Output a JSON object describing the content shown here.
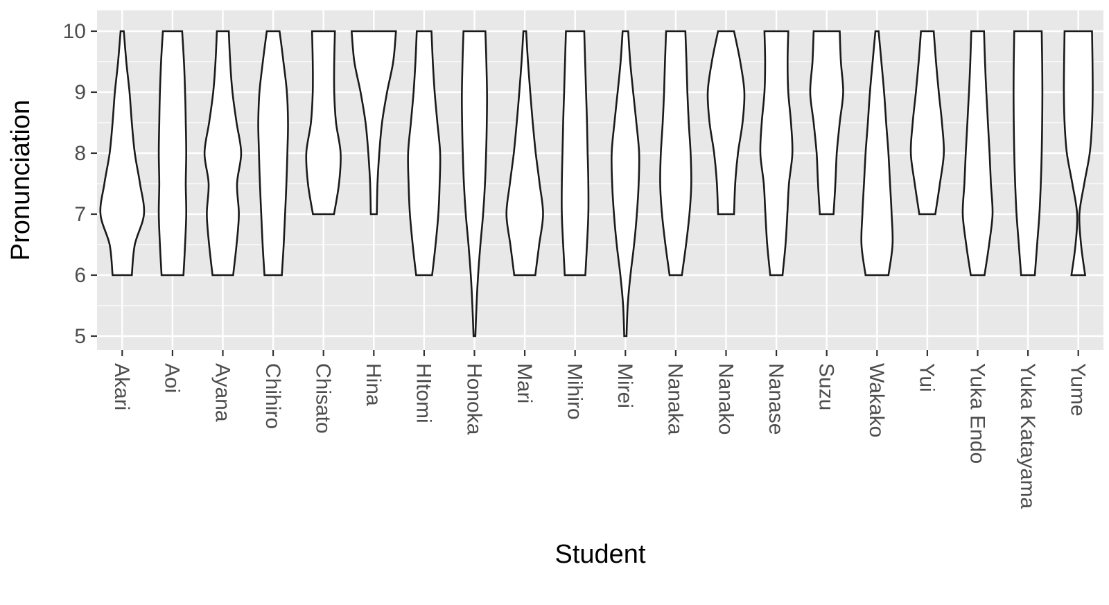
{
  "figure": {
    "background": "#FFFFFF",
    "panel_background": "#E8E8E8",
    "grid_color": "#FFFFFF",
    "violin_fill": "#FFFFFF",
    "violin_stroke": "#1A1A1A",
    "tick_color": "#333333",
    "tick_label_color": "#4D4D4D",
    "title_color": "#000000"
  },
  "chart_data": {
    "type": "violin",
    "title": "",
    "xlabel": "Student",
    "ylabel": "Pronunciation",
    "yticks": [
      10,
      9,
      8,
      7,
      6,
      5
    ],
    "y_minor_ticks": [
      9.5,
      8.5,
      7.5,
      6.5,
      5.5
    ],
    "ylim": [
      4.75,
      10.35
    ],
    "grid": true,
    "legend": false,
    "categories": [
      "Akari",
      "Aoi",
      "Ayana",
      "Chihiro",
      "Chisato",
      "Hina",
      "HItomi",
      "Honoka",
      "Mari",
      "Mihiro",
      "Mirei",
      "Nanaka",
      "Nanako",
      "Nanase",
      "Suzu",
      "Wakako",
      "Yui",
      "Yuka Endo",
      "Yuka Katayama",
      "Yume"
    ],
    "series": [
      {
        "id": "akari",
        "name": "Akari",
        "range": [
          6,
          10
        ],
        "profile": [
          [
            6,
            0.42
          ],
          [
            6.5,
            0.55
          ],
          [
            7,
            0.95
          ],
          [
            7.5,
            0.78
          ],
          [
            8,
            0.55
          ],
          [
            8.5,
            0.42
          ],
          [
            9,
            0.32
          ],
          [
            9.5,
            0.18
          ],
          [
            10,
            0.07
          ]
        ]
      },
      {
        "id": "aoi",
        "name": "Aoi",
        "range": [
          6,
          10
        ],
        "profile": [
          [
            6,
            0.48
          ],
          [
            6.5,
            0.55
          ],
          [
            7,
            0.6
          ],
          [
            7.5,
            0.58
          ],
          [
            8,
            0.6
          ],
          [
            8.5,
            0.58
          ],
          [
            9,
            0.55
          ],
          [
            9.5,
            0.5
          ],
          [
            10,
            0.42
          ]
        ]
      },
      {
        "id": "ayana",
        "name": "Ayana",
        "range": [
          6,
          10
        ],
        "profile": [
          [
            6,
            0.45
          ],
          [
            6.5,
            0.6
          ],
          [
            7,
            0.7
          ],
          [
            7.5,
            0.62
          ],
          [
            8,
            0.8
          ],
          [
            8.5,
            0.6
          ],
          [
            9,
            0.42
          ],
          [
            9.5,
            0.32
          ],
          [
            10,
            0.26
          ]
        ]
      },
      {
        "id": "chihiro",
        "name": "Chihiro",
        "range": [
          6,
          10
        ],
        "profile": [
          [
            6,
            0.38
          ],
          [
            6.5,
            0.46
          ],
          [
            7,
            0.52
          ],
          [
            7.5,
            0.58
          ],
          [
            8,
            0.62
          ],
          [
            8.5,
            0.65
          ],
          [
            9,
            0.6
          ],
          [
            9.5,
            0.45
          ],
          [
            10,
            0.28
          ]
        ]
      },
      {
        "id": "chisato",
        "name": "Chisato",
        "range": [
          7,
          10
        ],
        "profile": [
          [
            7,
            0.46
          ],
          [
            7.5,
            0.68
          ],
          [
            8,
            0.75
          ],
          [
            8.5,
            0.55
          ],
          [
            9,
            0.47
          ],
          [
            9.5,
            0.47
          ],
          [
            10,
            0.5
          ]
        ]
      },
      {
        "id": "hina",
        "name": "Hina",
        "range": [
          7,
          10
        ],
        "profile": [
          [
            7,
            0.13
          ],
          [
            7.5,
            0.16
          ],
          [
            8,
            0.24
          ],
          [
            8.5,
            0.36
          ],
          [
            9,
            0.58
          ],
          [
            9.5,
            0.85
          ],
          [
            10,
            0.97
          ]
        ]
      },
      {
        "id": "hitomi",
        "name": "HItomi",
        "range": [
          6,
          10
        ],
        "profile": [
          [
            6,
            0.35
          ],
          [
            6.5,
            0.5
          ],
          [
            7,
            0.62
          ],
          [
            7.5,
            0.68
          ],
          [
            8,
            0.7
          ],
          [
            8.5,
            0.58
          ],
          [
            9,
            0.46
          ],
          [
            9.5,
            0.38
          ],
          [
            10,
            0.32
          ]
        ]
      },
      {
        "id": "honoka",
        "name": "Honoka",
        "range": [
          5,
          10
        ],
        "profile": [
          [
            5,
            0.04
          ],
          [
            5.5,
            0.09
          ],
          [
            6,
            0.16
          ],
          [
            6.5,
            0.26
          ],
          [
            7,
            0.38
          ],
          [
            7.5,
            0.46
          ],
          [
            8,
            0.51
          ],
          [
            8.5,
            0.54
          ],
          [
            9,
            0.55
          ],
          [
            9.5,
            0.52
          ],
          [
            10,
            0.48
          ]
        ]
      },
      {
        "id": "mari",
        "name": "Mari",
        "range": [
          6,
          10
        ],
        "profile": [
          [
            6,
            0.46
          ],
          [
            6.5,
            0.63
          ],
          [
            7,
            0.8
          ],
          [
            7.5,
            0.65
          ],
          [
            8,
            0.48
          ],
          [
            8.5,
            0.35
          ],
          [
            9,
            0.24
          ],
          [
            9.5,
            0.14
          ],
          [
            10,
            0.06
          ]
        ]
      },
      {
        "id": "mihiro",
        "name": "Mihiro",
        "range": [
          6,
          10
        ],
        "profile": [
          [
            6,
            0.45
          ],
          [
            6.5,
            0.52
          ],
          [
            7,
            0.58
          ],
          [
            7.5,
            0.58
          ],
          [
            8,
            0.55
          ],
          [
            8.5,
            0.52
          ],
          [
            9,
            0.48
          ],
          [
            9.5,
            0.44
          ],
          [
            10,
            0.4
          ]
        ]
      },
      {
        "id": "mirei",
        "name": "Mirei",
        "range": [
          5,
          10
        ],
        "profile": [
          [
            5,
            0.05
          ],
          [
            5.5,
            0.1
          ],
          [
            6,
            0.22
          ],
          [
            6.5,
            0.38
          ],
          [
            7,
            0.5
          ],
          [
            7.5,
            0.58
          ],
          [
            8,
            0.6
          ],
          [
            8.5,
            0.48
          ],
          [
            9,
            0.34
          ],
          [
            9.5,
            0.21
          ],
          [
            10,
            0.12
          ]
        ]
      },
      {
        "id": "nanaka",
        "name": "Nanaka",
        "range": [
          6,
          10
        ],
        "profile": [
          [
            6,
            0.27
          ],
          [
            6.5,
            0.45
          ],
          [
            7,
            0.6
          ],
          [
            7.5,
            0.68
          ],
          [
            8,
            0.65
          ],
          [
            8.5,
            0.57
          ],
          [
            9,
            0.51
          ],
          [
            9.5,
            0.47
          ],
          [
            10,
            0.42
          ]
        ]
      },
      {
        "id": "nanako",
        "name": "Nanako",
        "range": [
          7,
          10
        ],
        "profile": [
          [
            7,
            0.35
          ],
          [
            7.5,
            0.4
          ],
          [
            8,
            0.52
          ],
          [
            8.5,
            0.72
          ],
          [
            9,
            0.8
          ],
          [
            9.5,
            0.62
          ],
          [
            10,
            0.35
          ]
        ]
      },
      {
        "id": "nanase",
        "name": "Nanase",
        "range": [
          6,
          10
        ],
        "profile": [
          [
            6,
            0.27
          ],
          [
            6.5,
            0.4
          ],
          [
            7,
            0.48
          ],
          [
            7.5,
            0.55
          ],
          [
            8,
            0.7
          ],
          [
            8.5,
            0.64
          ],
          [
            9,
            0.52
          ],
          [
            9.5,
            0.49
          ],
          [
            10,
            0.52
          ]
        ]
      },
      {
        "id": "suzu",
        "name": "Suzu",
        "range": [
          7,
          10
        ],
        "profile": [
          [
            7,
            0.3
          ],
          [
            7.5,
            0.38
          ],
          [
            8,
            0.44
          ],
          [
            8.5,
            0.57
          ],
          [
            9,
            0.72
          ],
          [
            9.5,
            0.62
          ],
          [
            10,
            0.57
          ]
        ]
      },
      {
        "id": "wakako",
        "name": "Wakako",
        "range": [
          6,
          10
        ],
        "profile": [
          [
            6,
            0.5
          ],
          [
            6.5,
            0.68
          ],
          [
            7,
            0.64
          ],
          [
            7.5,
            0.57
          ],
          [
            8,
            0.5
          ],
          [
            8.5,
            0.4
          ],
          [
            9,
            0.31
          ],
          [
            9.5,
            0.19
          ],
          [
            10,
            0.07
          ]
        ]
      },
      {
        "id": "yui",
        "name": "Yui",
        "range": [
          7,
          10
        ],
        "profile": [
          [
            7,
            0.35
          ],
          [
            7.5,
            0.55
          ],
          [
            8,
            0.72
          ],
          [
            8.5,
            0.64
          ],
          [
            9,
            0.5
          ],
          [
            9.5,
            0.38
          ],
          [
            10,
            0.28
          ]
        ]
      },
      {
        "id": "yuka-endo",
        "name": "Yuka Endo",
        "range": [
          6,
          10
        ],
        "profile": [
          [
            6,
            0.3
          ],
          [
            6.5,
            0.5
          ],
          [
            7,
            0.65
          ],
          [
            7.5,
            0.58
          ],
          [
            8,
            0.52
          ],
          [
            8.5,
            0.45
          ],
          [
            9,
            0.38
          ],
          [
            9.5,
            0.32
          ],
          [
            10,
            0.28
          ]
        ]
      },
      {
        "id": "yuka-katayama",
        "name": "Yuka Katayama",
        "range": [
          6,
          10
        ],
        "profile": [
          [
            6,
            0.3
          ],
          [
            6.5,
            0.4
          ],
          [
            7,
            0.5
          ],
          [
            7.5,
            0.56
          ],
          [
            8,
            0.6
          ],
          [
            8.5,
            0.62
          ],
          [
            9,
            0.63
          ],
          [
            9.5,
            0.62
          ],
          [
            10,
            0.6
          ]
        ]
      },
      {
        "id": "yume",
        "name": "Yume",
        "range": [
          6,
          10
        ],
        "profile": [
          [
            6,
            0.3
          ],
          [
            6.5,
            0.12
          ],
          [
            7,
            0.05
          ],
          [
            7.5,
            0.26
          ],
          [
            8,
            0.5
          ],
          [
            8.5,
            0.6
          ],
          [
            9,
            0.63
          ],
          [
            9.5,
            0.62
          ],
          [
            10,
            0.6
          ]
        ]
      }
    ]
  }
}
